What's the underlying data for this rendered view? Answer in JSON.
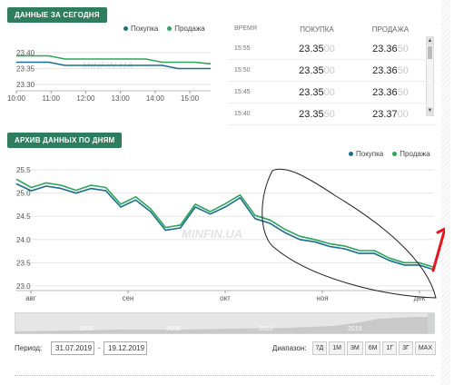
{
  "today": {
    "tag": "ДАННЫЕ ЗА СЕГОДНЯ",
    "legend": {
      "buy": "Покупка",
      "sell": "Продажа"
    },
    "watermark": "MINFIN.UA"
  },
  "rates": {
    "headers": {
      "time": "ВРЕМЯ",
      "buy": "ПОКУПКА",
      "sell": "ПРОДАЖА"
    },
    "rows": [
      {
        "time": "15:55",
        "buy_main": "23.35",
        "buy_tail": "00",
        "sell_main": "23.36",
        "sell_tail": "50"
      },
      {
        "time": "15:50",
        "buy_main": "23.35",
        "buy_tail": "00",
        "sell_main": "23.36",
        "sell_tail": "50"
      },
      {
        "time": "15:45",
        "buy_main": "23.35",
        "buy_tail": "00",
        "sell_main": "23.36",
        "sell_tail": "50"
      },
      {
        "time": "15:40",
        "buy_main": "23.35",
        "buy_tail": "50",
        "sell_main": "23.37",
        "sell_tail": "00"
      }
    ]
  },
  "archive": {
    "tag": "АРХИВ ДАННЫХ ПО ДНЯМ",
    "legend": {
      "buy": "Покупка",
      "sell": "Продажа"
    },
    "watermark": "MINFIN.UA"
  },
  "navigator": {
    "labels": [
      "2000",
      "2005",
      "2010",
      "2015"
    ]
  },
  "controls": {
    "period_label": "Период:",
    "from": "31.07.2019",
    "dash": "-",
    "to": "19.12.2019",
    "range_label": "Диапазон:",
    "range_buttons": [
      "7Д",
      "1М",
      "3М",
      "6М",
      "1Г",
      "3Г",
      "MAX"
    ]
  },
  "colors": {
    "buy": "#1a6e8c",
    "sell": "#2aa55a",
    "accent": "#2e7d5e",
    "annotation": "#e8141a"
  },
  "chart_data": [
    {
      "type": "line",
      "x": [
        "10:00",
        "10:30",
        "11:00",
        "11:30",
        "12:00",
        "12:30",
        "13:00",
        "13:30",
        "14:00",
        "14:30",
        "15:00",
        "15:30",
        "15:55"
      ],
      "series": [
        {
          "name": "Покупка",
          "values": [
            23.37,
            23.37,
            23.37,
            23.36,
            23.36,
            23.36,
            23.36,
            23.36,
            23.36,
            23.36,
            23.35,
            23.35,
            23.35
          ]
        },
        {
          "name": "Продажа",
          "values": [
            23.39,
            23.39,
            23.39,
            23.38,
            23.38,
            23.38,
            23.38,
            23.38,
            23.38,
            23.37,
            23.37,
            23.37,
            23.365
          ]
        }
      ],
      "ylim": [
        23.28,
        23.44
      ],
      "yticks": [
        "23.40",
        "23.35",
        "23.30"
      ],
      "xticks": [
        "10:00",
        "11:00",
        "12:00",
        "13:00",
        "14:00",
        "15:00"
      ]
    },
    {
      "type": "line",
      "x": [
        "31.07",
        "05.08",
        "10.08",
        "15.08",
        "20.08",
        "25.08",
        "30.08",
        "04.09",
        "09.09",
        "14.09",
        "19.09",
        "24.09",
        "29.09",
        "04.10",
        "09.10",
        "14.10",
        "19.10",
        "24.10",
        "29.10",
        "03.11",
        "08.11",
        "13.11",
        "18.11",
        "23.11",
        "28.11",
        "03.12",
        "08.12",
        "13.12",
        "19.12"
      ],
      "series": [
        {
          "name": "Покупка",
          "values": [
            25.2,
            25.05,
            25.15,
            25.1,
            25.0,
            25.1,
            25.05,
            24.7,
            24.85,
            24.6,
            24.2,
            24.25,
            24.7,
            24.55,
            24.7,
            24.9,
            24.45,
            24.35,
            24.15,
            24.0,
            23.95,
            23.85,
            23.8,
            23.7,
            23.7,
            23.55,
            23.45,
            23.45,
            23.35
          ]
        },
        {
          "name": "Продажа",
          "values": [
            25.3,
            25.12,
            25.22,
            25.17,
            25.06,
            25.17,
            25.12,
            24.76,
            24.92,
            24.66,
            24.26,
            24.31,
            24.76,
            24.6,
            24.77,
            24.96,
            24.52,
            24.42,
            24.22,
            24.07,
            24.0,
            23.91,
            23.86,
            23.76,
            23.76,
            23.6,
            23.5,
            23.5,
            23.4
          ]
        }
      ],
      "ylim": [
        22.9,
        25.6
      ],
      "yticks": [
        "25.5",
        "25.0",
        "24.5",
        "24.0",
        "23.5",
        "23.0"
      ],
      "xticks": [
        "авг",
        "сен",
        "окт",
        "ноя",
        "дек"
      ]
    }
  ]
}
